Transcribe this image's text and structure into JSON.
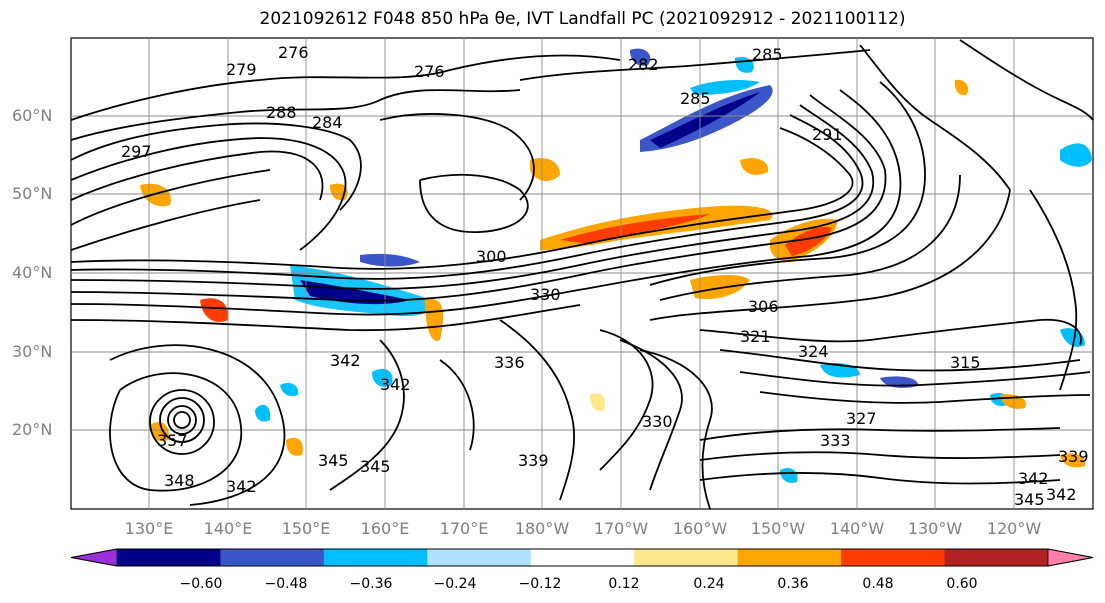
{
  "title": "2021092612 F048 850 hPa θe, IVT Landfall PC (2021092912 - 2021100112)",
  "map": {
    "lat_labels": [
      "60°N",
      "50°N",
      "40°N",
      "30°N",
      "20°N"
    ],
    "lon_labels": [
      "130°E",
      "140°E",
      "150°E",
      "160°E",
      "170°E",
      "180°W",
      "170°W",
      "160°W",
      "150°W",
      "140°W",
      "130°W",
      "120°W"
    ],
    "contour_labels": [
      "279",
      "276",
      "276",
      "282",
      "285",
      "285",
      "288",
      "284",
      "291",
      "297",
      "300",
      "330",
      "306",
      "336",
      "315",
      "327",
      "333",
      "330",
      "342",
      "342",
      "345",
      "345",
      "357",
      "348",
      "342",
      "339",
      "342",
      "345",
      "342",
      "339",
      "324",
      "321"
    ],
    "contour_color": "#000000",
    "gridline_color": "#8c8c8c"
  },
  "colorbar": {
    "bins": [
      {
        "color": "#9b30d9"
      },
      {
        "color": "#00008b"
      },
      {
        "color": "#3a56c9"
      },
      {
        "color": "#00bfff"
      },
      {
        "color": "#b0e2ff"
      },
      {
        "color": "#ffffff"
      },
      {
        "color": "#ffe88a"
      },
      {
        "color": "#ffa500"
      },
      {
        "color": "#ff3c00"
      },
      {
        "color": "#b22222"
      },
      {
        "color": "#ff7fa8"
      }
    ],
    "ticks": [
      "−0.60",
      "−0.48",
      "−0.36",
      "−0.24",
      "−0.12",
      "0.12",
      "0.24",
      "0.36",
      "0.48",
      "0.60"
    ]
  }
}
